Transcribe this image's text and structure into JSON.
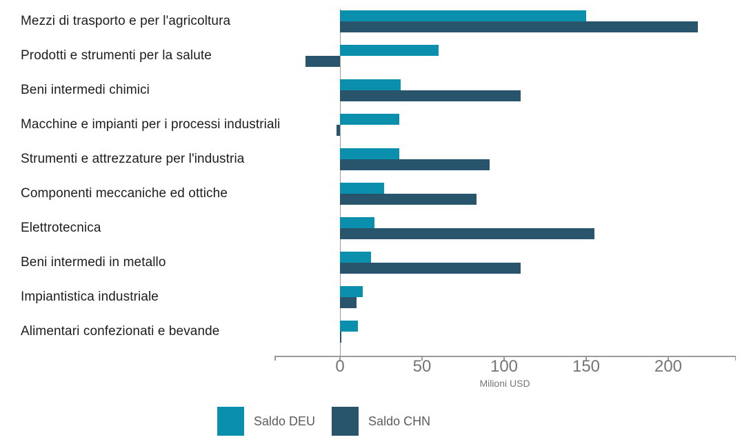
{
  "chart_data": {
    "type": "bar",
    "orientation": "horizontal",
    "title": "",
    "xlabel": "Milioni USD",
    "ylabel": "",
    "categories": [
      "Mezzi di trasporto e per l'agricoltura",
      "Prodotti e strumenti per la salute",
      "Beni intermedi chimici",
      "Macchine e impianti per i processi industriali",
      "Strumenti e attrezzature per l'industria",
      "Componenti meccaniche ed ottiche",
      "Elettrotecnica",
      "Beni intermedi in metallo",
      "Impiantistica industriale",
      "Alimentari confezionati e bevande"
    ],
    "series": [
      {
        "name": "Saldo DEU",
        "color": "#0a8fad",
        "values": [
          150,
          60,
          37,
          36,
          36,
          27,
          21,
          19,
          14,
          11
        ]
      },
      {
        "name": "Saldo CHN",
        "color": "#28556c",
        "values": [
          218,
          -21,
          110,
          -2,
          91,
          83,
          155,
          110,
          10,
          1
        ]
      }
    ],
    "xticks": [
      0,
      50,
      100,
      150,
      200
    ],
    "xlim": [
      -40,
      241
    ],
    "grid": false,
    "legend_position": "bottom"
  },
  "colors": {
    "background": "#ffffff",
    "axis_line": "#9a9a9a",
    "tick_label": "#757575",
    "category_label": "#1d1d1d",
    "legend_label": "#5c5c5c"
  }
}
